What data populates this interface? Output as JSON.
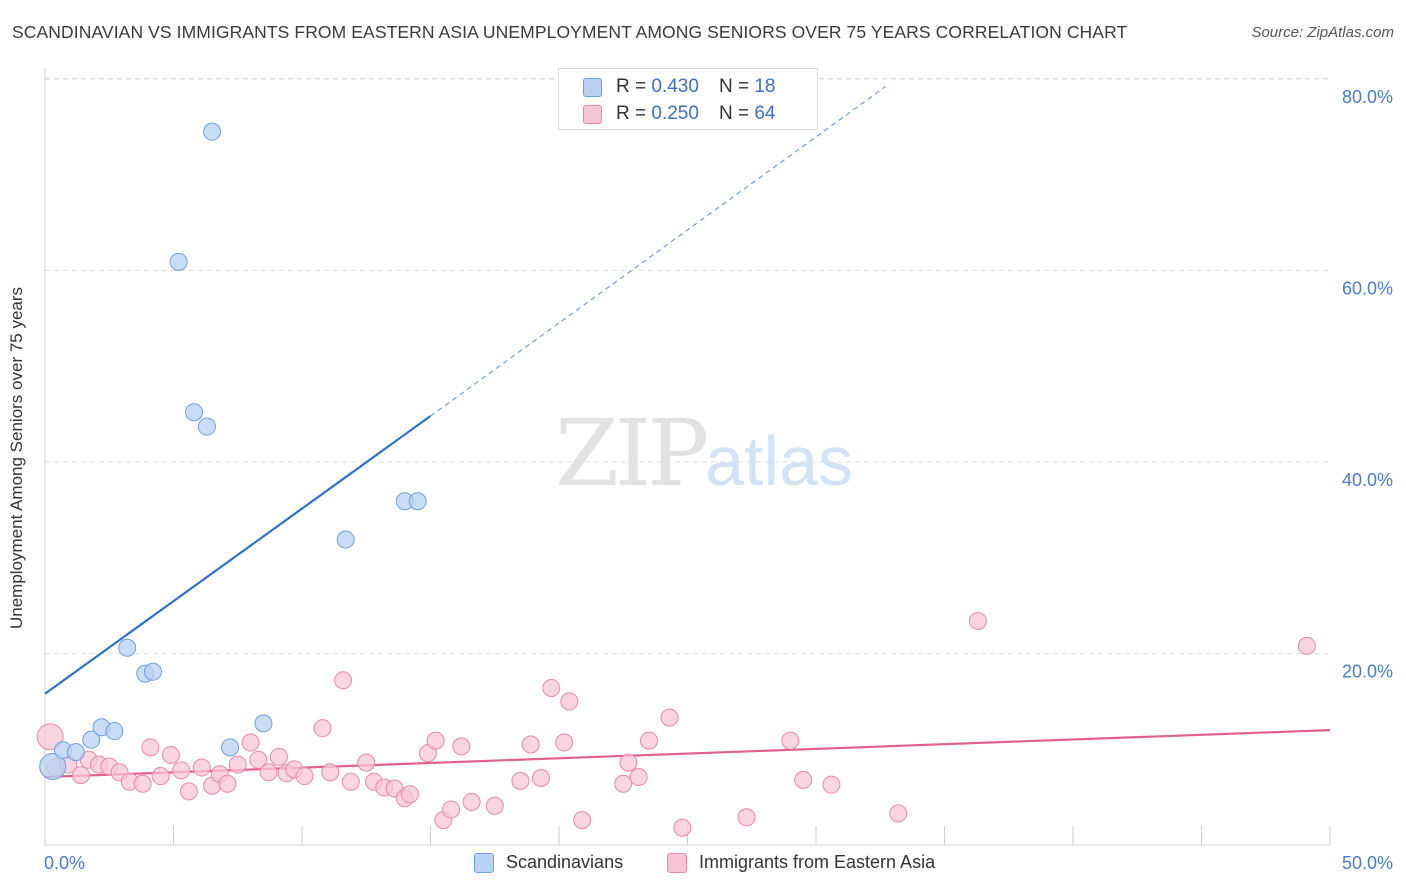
{
  "title": "SCANDINAVIAN VS IMMIGRANTS FROM EASTERN ASIA UNEMPLOYMENT AMONG SENIORS OVER 75 YEARS CORRELATION CHART",
  "source": "Source: ZipAtlas.com",
  "watermark": {
    "zip": "ZIP",
    "atlas": "atlas"
  },
  "legend_top": [
    {
      "r_label": "R = ",
      "r_value": "0.430",
      "n_label": "N = ",
      "n_value": "18"
    },
    {
      "r_label": "R = ",
      "r_value": "0.250",
      "n_label": "N = ",
      "n_value": "64"
    }
  ],
  "legend_bottom": [
    "Scandinavians",
    "Immigrants from Eastern Asia"
  ],
  "colors": {
    "blue_fill": "#b8d2f3",
    "blue_stroke": "#6f9fe0",
    "blue_line": "#2d6fd0",
    "pink_fill": "#f8c5d4",
    "pink_stroke": "#e98aa6",
    "pink_line": "#e0608f",
    "grid": "#dddddd",
    "tick_text": "#4a7cc9"
  },
  "chart_data": {
    "type": "scatter",
    "title": "SCANDINAVIAN VS IMMIGRANTS FROM EASTERN ASIA UNEMPLOYMENT AMONG SENIORS OVER 75 YEARS CORRELATION CHART",
    "xlabel": "",
    "ylabel": "Unemployment Among Seniors over 75 years",
    "xlim": [
      0,
      50
    ],
    "ylim": [
      0,
      80
    ],
    "x_tick_labels": [
      "0.0%",
      "50.0%"
    ],
    "y_ticks": [
      20,
      40,
      60,
      80
    ],
    "y_tick_labels": [
      "20.0%",
      "40.0%",
      "60.0%",
      "80.0%"
    ],
    "grid": true,
    "legend_position": "top-center",
    "series": [
      {
        "name": "Scandinavians",
        "color": "#b8d2f3",
        "r": 0.43,
        "n": 18,
        "points": [
          [
            0.3,
            8.2
          ],
          [
            0.7,
            9.9
          ],
          [
            1.2,
            9.7
          ],
          [
            1.8,
            11.0
          ],
          [
            2.2,
            12.3
          ],
          [
            2.7,
            11.9
          ],
          [
            3.2,
            20.6
          ],
          [
            3.9,
            17.9
          ],
          [
            4.2,
            18.1
          ],
          [
            5.2,
            60.9
          ],
          [
            5.8,
            45.2
          ],
          [
            6.3,
            43.7
          ],
          [
            6.5,
            74.5
          ],
          [
            7.2,
            10.2
          ],
          [
            8.5,
            12.7
          ],
          [
            11.7,
            31.9
          ],
          [
            14.0,
            35.9
          ],
          [
            14.5,
            35.9
          ]
        ],
        "trend": {
          "x": [
            0,
            15
          ],
          "y": [
            15.8,
            44.8
          ],
          "dashed_to": [
            32.7,
            79.2
          ]
        }
      },
      {
        "name": "Immigrants from Eastern Asia",
        "color": "#f8c5d4",
        "r": 0.25,
        "n": 64,
        "points": [
          [
            0.2,
            11.3
          ],
          [
            0.4,
            8.1
          ],
          [
            0.9,
            8.4
          ],
          [
            1.4,
            7.3
          ],
          [
            1.7,
            8.9
          ],
          [
            2.1,
            8.4
          ],
          [
            2.5,
            8.2
          ],
          [
            2.9,
            7.6
          ],
          [
            3.3,
            6.6
          ],
          [
            3.8,
            6.4
          ],
          [
            4.1,
            10.2
          ],
          [
            4.5,
            7.2
          ],
          [
            4.9,
            9.4
          ],
          [
            5.3,
            7.8
          ],
          [
            5.6,
            5.6
          ],
          [
            6.1,
            8.1
          ],
          [
            6.5,
            6.2
          ],
          [
            6.8,
            7.4
          ],
          [
            7.1,
            6.4
          ],
          [
            7.5,
            8.4
          ],
          [
            8.0,
            10.7
          ],
          [
            8.3,
            8.9
          ],
          [
            8.7,
            7.6
          ],
          [
            9.1,
            9.2
          ],
          [
            9.4,
            7.5
          ],
          [
            9.7,
            7.9
          ],
          [
            10.1,
            7.2
          ],
          [
            10.8,
            12.2
          ],
          [
            11.1,
            7.6
          ],
          [
            11.6,
            17.2
          ],
          [
            11.9,
            6.6
          ],
          [
            12.5,
            8.6
          ],
          [
            12.8,
            6.6
          ],
          [
            13.2,
            6.0
          ],
          [
            13.6,
            5.9
          ],
          [
            14.0,
            4.9
          ],
          [
            14.2,
            5.3
          ],
          [
            14.9,
            9.6
          ],
          [
            15.2,
            10.9
          ],
          [
            15.5,
            2.6
          ],
          [
            15.8,
            3.7
          ],
          [
            16.2,
            10.3
          ],
          [
            16.6,
            4.5
          ],
          [
            17.5,
            4.1
          ],
          [
            18.5,
            6.7
          ],
          [
            18.9,
            10.5
          ],
          [
            19.3,
            7.0
          ],
          [
            19.7,
            16.4
          ],
          [
            20.2,
            10.7
          ],
          [
            20.4,
            15.0
          ],
          [
            20.9,
            2.6
          ],
          [
            22.5,
            6.4
          ],
          [
            22.7,
            8.6
          ],
          [
            23.1,
            7.1
          ],
          [
            23.5,
            10.9
          ],
          [
            24.3,
            13.3
          ],
          [
            24.8,
            1.8
          ],
          [
            27.3,
            2.9
          ],
          [
            29.0,
            10.9
          ],
          [
            29.5,
            6.8
          ],
          [
            30.6,
            6.3
          ],
          [
            33.2,
            3.3
          ],
          [
            36.3,
            23.4
          ],
          [
            49.1,
            20.8
          ]
        ],
        "trend": {
          "x": [
            0,
            50
          ],
          "y": [
            7.1,
            12.0
          ]
        }
      }
    ]
  }
}
